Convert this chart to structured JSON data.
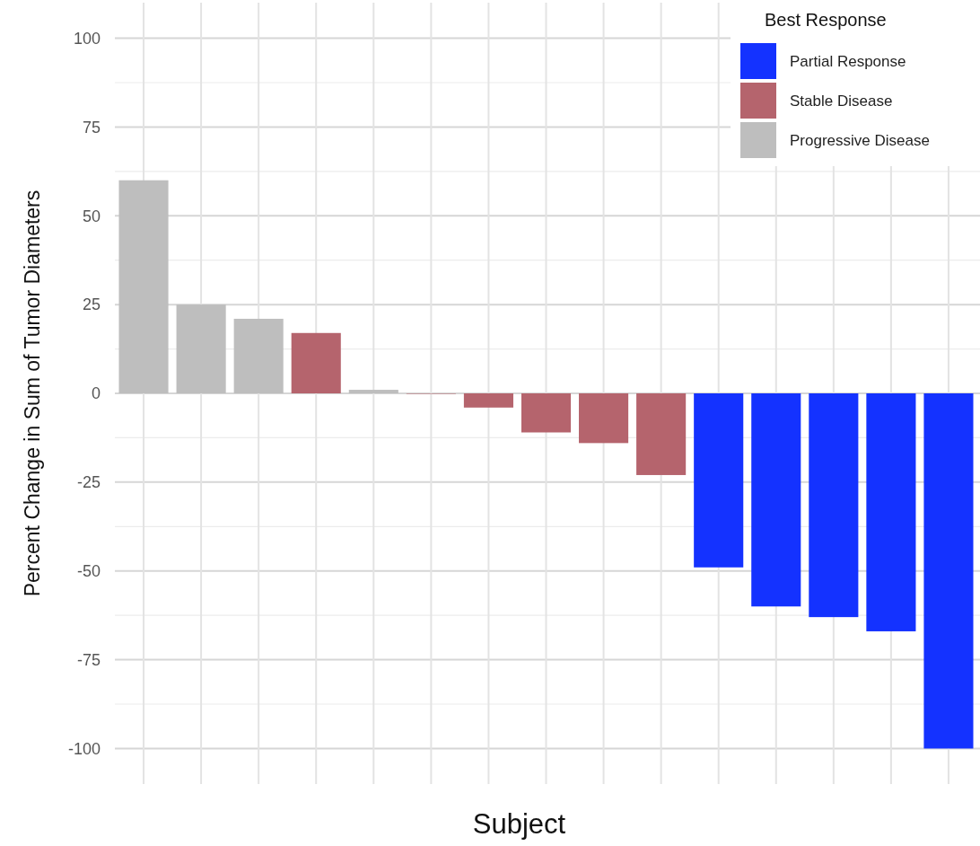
{
  "chart_data": {
    "type": "bar",
    "xlabel": "Subject",
    "ylabel": "Percent Change in Sum of Tumor Diameters",
    "legend_title": "Best Response",
    "categories": [
      null,
      null,
      null,
      null,
      null,
      null,
      null,
      null,
      null,
      null,
      null,
      null,
      null,
      null,
      null
    ],
    "series": [
      {
        "name": "Partial Response",
        "color": "#1432ff",
        "values": [
          null,
          null,
          null,
          null,
          null,
          null,
          null,
          null,
          null,
          null,
          -49,
          -60,
          -63,
          -67,
          -100
        ]
      },
      {
        "name": "Stable Disease",
        "color": "#b5646d",
        "values": [
          null,
          null,
          null,
          17,
          null,
          0,
          -4,
          -11,
          -14,
          -23,
          null,
          null,
          null,
          null,
          null
        ]
      },
      {
        "name": "Progressive Disease",
        "color": "#bebebe",
        "values": [
          60,
          25,
          21,
          null,
          1,
          null,
          null,
          null,
          null,
          null,
          null,
          null,
          null,
          null,
          null
        ]
      }
    ],
    "ylim": [
      -110,
      110
    ],
    "yticks": [
      -100,
      -75,
      -50,
      -25,
      0,
      25,
      50,
      75,
      100
    ],
    "grid": true,
    "legend": "top right"
  }
}
